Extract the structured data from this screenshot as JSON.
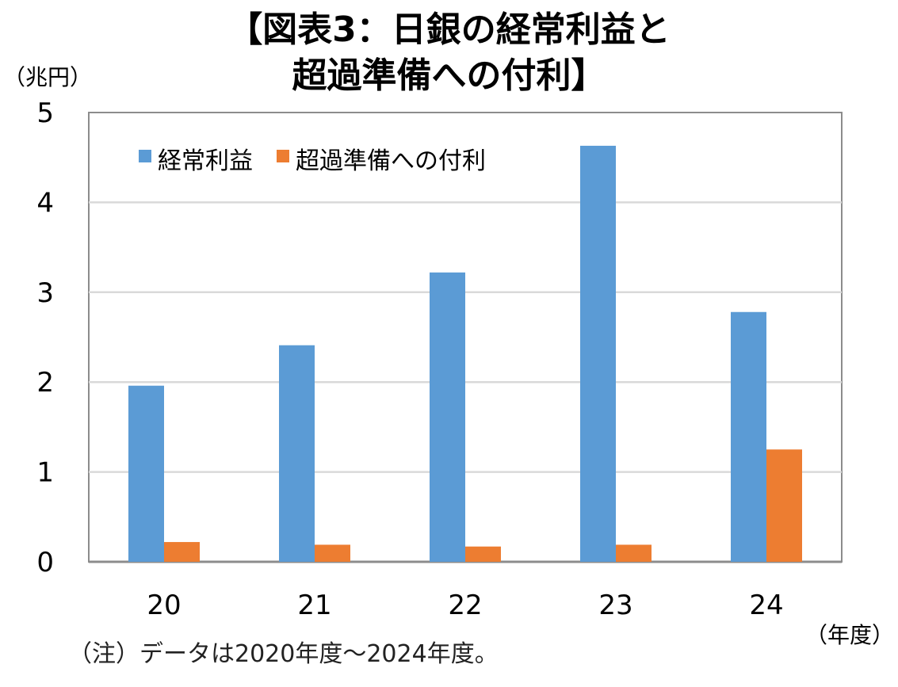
{
  "title_lines": [
    "【図表3：日銀の経常利益と",
    "超過準備への付利】"
  ],
  "y_unit_label": "（兆円）",
  "x_unit_label": "（年度）",
  "note": "（注）データは2020年度～2024年度。",
  "chart_data": {
    "type": "bar",
    "categories": [
      "20",
      "21",
      "22",
      "23",
      "24"
    ],
    "series": [
      {
        "name": "経常利益",
        "values": [
          1.96,
          2.41,
          3.22,
          4.63,
          2.78
        ],
        "color": "#5b9bd5"
      },
      {
        "name": "超過準備への付利",
        "values": [
          0.22,
          0.19,
          0.17,
          0.19,
          1.25
        ],
        "color": "#ed7d31"
      }
    ],
    "ylim": [
      0,
      5
    ],
    "yticks": [
      "0",
      "1",
      "2",
      "3",
      "4",
      "5"
    ],
    "grid": true,
    "legend_position": "top-left"
  }
}
